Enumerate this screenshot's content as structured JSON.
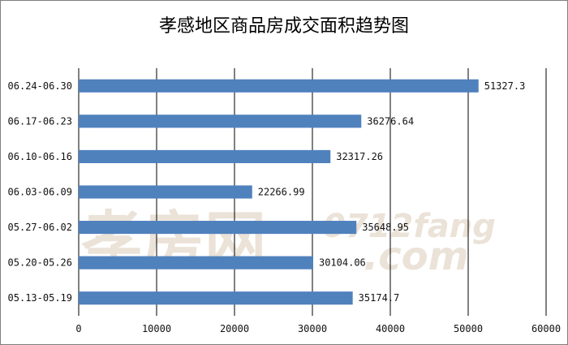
{
  "chart_data": {
    "type": "bar",
    "orientation": "horizontal",
    "title": "孝感地区商品房成交面积趋势图",
    "categories": [
      "06.24-06.30",
      "06.17-06.23",
      "06.10-06.16",
      "06.03-06.09",
      "05.27-06.02",
      "05.20-05.26",
      "05.13-05.19"
    ],
    "values": [
      51327.3,
      36276.64,
      32317.26,
      22266.99,
      35648.95,
      30104.06,
      35174.7
    ],
    "value_labels": [
      "51327.3",
      "36276.64",
      "32317.26",
      "22266.99",
      "35648.95",
      "30104.06",
      "35174.7"
    ],
    "xlim": [
      0,
      60000
    ],
    "x_ticks": [
      "0",
      "10000",
      "20000",
      "30000",
      "40000",
      "50000",
      "60000"
    ],
    "gridlines": "vertical",
    "bar_color": "#4f81bd",
    "legend": "none"
  },
  "watermark": {
    "chinese": "孝房网",
    "latin_top": "0712fang",
    "latin_bottom": ".com"
  }
}
